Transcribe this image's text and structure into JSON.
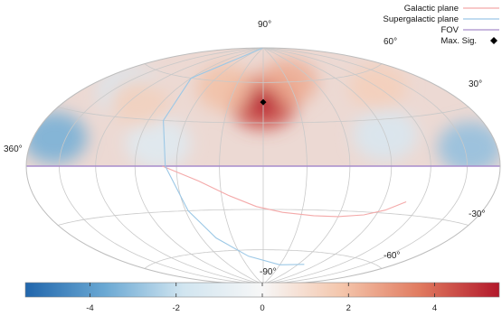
{
  "chart_data": {
    "type": "heatmap",
    "projection": "aitoff/hammer all-sky",
    "coordinate_labels": {
      "lat_top": "90°",
      "lat_60": "60°",
      "lat_30": "30°",
      "lon_left": "360°",
      "lat_neg30": "-30°",
      "lat_neg60": "-60°",
      "lat_bottom": "-90°"
    },
    "legend": {
      "placement": "top-right",
      "entries": [
        {
          "label": "Galactic plane",
          "color": "#f4a9a9",
          "marker": "line"
        },
        {
          "label": "Supergalactic plane",
          "color": "#9cc8e6",
          "marker": "line"
        },
        {
          "label": "FOV",
          "color": "#a78ccb",
          "marker": "line"
        },
        {
          "label": "Max. Sig.",
          "color": "#000000",
          "marker": "diamond"
        }
      ]
    },
    "colorbar": {
      "min": -5.5,
      "max": 5.5,
      "ticks": [
        -4,
        -2,
        0,
        2,
        4
      ],
      "tick_labels": [
        "-4",
        "-2",
        "0",
        "2",
        "4"
      ],
      "colors": [
        "#2166ac",
        "#6aa8d3",
        "#d1e5f0",
        "#f7f7f7",
        "#f4c6ac",
        "#e07a5f",
        "#b2182b"
      ]
    },
    "max_significance": {
      "lon": 180,
      "lat": 45,
      "value": 5.3
    },
    "fov_dec_limit": 0,
    "hotspots": [
      {
        "lon": 180,
        "lat": 45,
        "value": 4.5
      },
      {
        "lon": 150,
        "lat": 60,
        "value": 2.5
      },
      {
        "lon": 220,
        "lat": 55,
        "value": 2.0
      },
      {
        "lon": 60,
        "lat": 50,
        "value": 1.5
      },
      {
        "lon": 290,
        "lat": 40,
        "value": 1.5
      }
    ],
    "coldspots": [
      {
        "lon": 340,
        "lat": 15,
        "value": -3.5
      },
      {
        "lon": 25,
        "lat": 10,
        "value": -3.0
      },
      {
        "lon": 310,
        "lat": 45,
        "value": -1.5
      },
      {
        "lon": 90,
        "lat": 20,
        "value": -1.5
      },
      {
        "lon": 255,
        "lat": 15,
        "value": -1.2
      }
    ]
  }
}
